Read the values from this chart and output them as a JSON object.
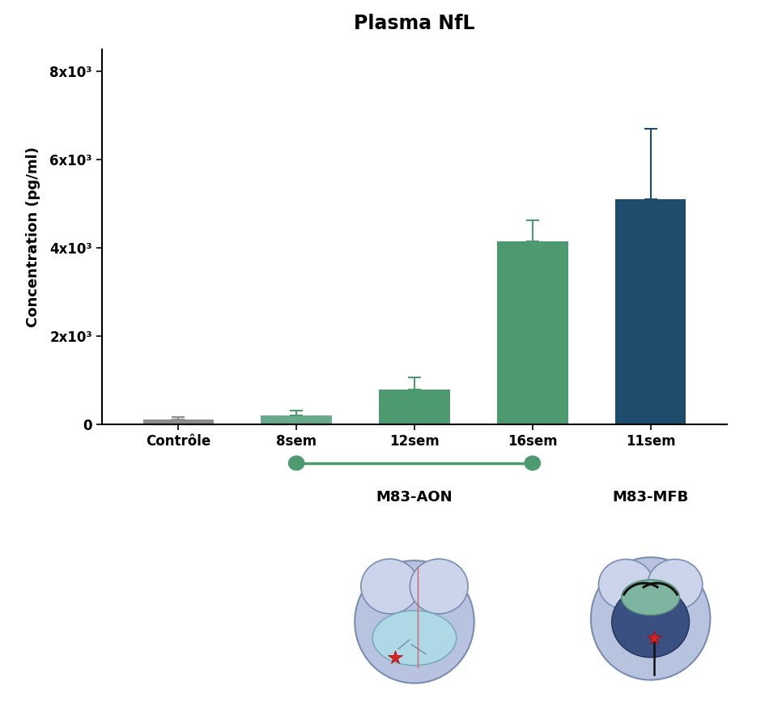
{
  "title": "Plasma NfL",
  "categories": [
    "Contrôle",
    "8sem",
    "12sem",
    "16sem",
    "11sem"
  ],
  "values": [
    100,
    190,
    780,
    4150,
    5100
  ],
  "errors": [
    70,
    110,
    280,
    480,
    1600
  ],
  "bar_colors": [
    "#8c8c8c",
    "#6aaa8c",
    "#4d9970",
    "#4d9970",
    "#1e4d6b"
  ],
  "ylabel": "Concentration (pg/ml)",
  "ylim": [
    0,
    8500
  ],
  "yticks": [
    0,
    2000,
    4000,
    6000,
    8000
  ],
  "ytick_labels": [
    "0",
    "2x10³",
    "4x10³",
    "6x10³",
    "8x10³"
  ],
  "background_color": "#ffffff",
  "title_fontsize": 17,
  "label_fontsize": 13,
  "tick_fontsize": 12,
  "bar_width": 0.6,
  "aon_label": "M83-AON",
  "mfb_label": "M83-MFB",
  "bracket_color": "#4d9970"
}
